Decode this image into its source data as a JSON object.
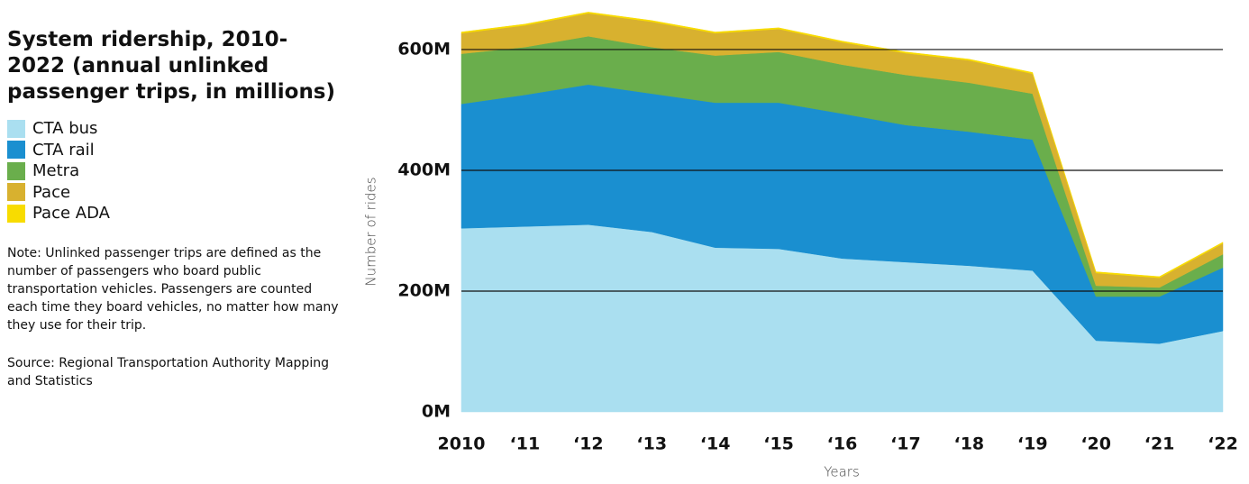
{
  "chart_data": {
    "type": "stacked_area",
    "title": "System ridership, 2010-2022 (annual unlinked passenger trips, in millions)",
    "note": "Note: Unlinked passenger trips are defined as the number of passengers who board public transportation vehicles. Passengers are counted each time they board vehicles, no matter how many they use for their trip.",
    "source": "Source: Regional Transportation Authority Mapping and Statistics",
    "x_label": "Years",
    "y_label": "Number of rides",
    "categories": [
      "2010",
      "‘11",
      "‘12",
      "‘13",
      "‘14",
      "‘15",
      "‘16",
      "‘17",
      "‘18",
      "‘19",
      "‘20",
      "‘21",
      "‘22"
    ],
    "series": [
      {
        "name": "CTA bus",
        "color": "#aadff0",
        "values": [
          304,
          307,
          310,
          298,
          272,
          270,
          254,
          248,
          242,
          234,
          118,
          113,
          134
        ]
      },
      {
        "name": "CTA rail",
        "color": "#1a8fd0",
        "values": [
          206,
          218,
          232,
          229,
          240,
          242,
          240,
          227,
          222,
          217,
          73,
          78,
          105
        ]
      },
      {
        "name": "Metra",
        "color": "#6aae4c",
        "values": [
          83,
          79,
          80,
          77,
          78,
          84,
          81,
          83,
          81,
          76,
          18,
          15,
          22
        ]
      },
      {
        "name": "Pace",
        "color": "#d8b12f",
        "values": [
          34,
          36,
          38,
          42,
          37,
          38,
          37,
          36,
          37,
          33,
          21,
          16,
          18
        ]
      },
      {
        "name": "Pace ADA",
        "color": "#f8dc00",
        "values": [
          2,
          2,
          2,
          2,
          2,
          2,
          2,
          2,
          2,
          2,
          2,
          2,
          2
        ]
      }
    ],
    "ylim": [
      0,
      682
    ],
    "yticks": [
      {
        "value": 0,
        "label": "0M"
      },
      {
        "value": 200,
        "label": "200M"
      },
      {
        "value": 400,
        "label": "400M"
      },
      {
        "value": 600,
        "label": "600M"
      }
    ],
    "grid": true
  }
}
